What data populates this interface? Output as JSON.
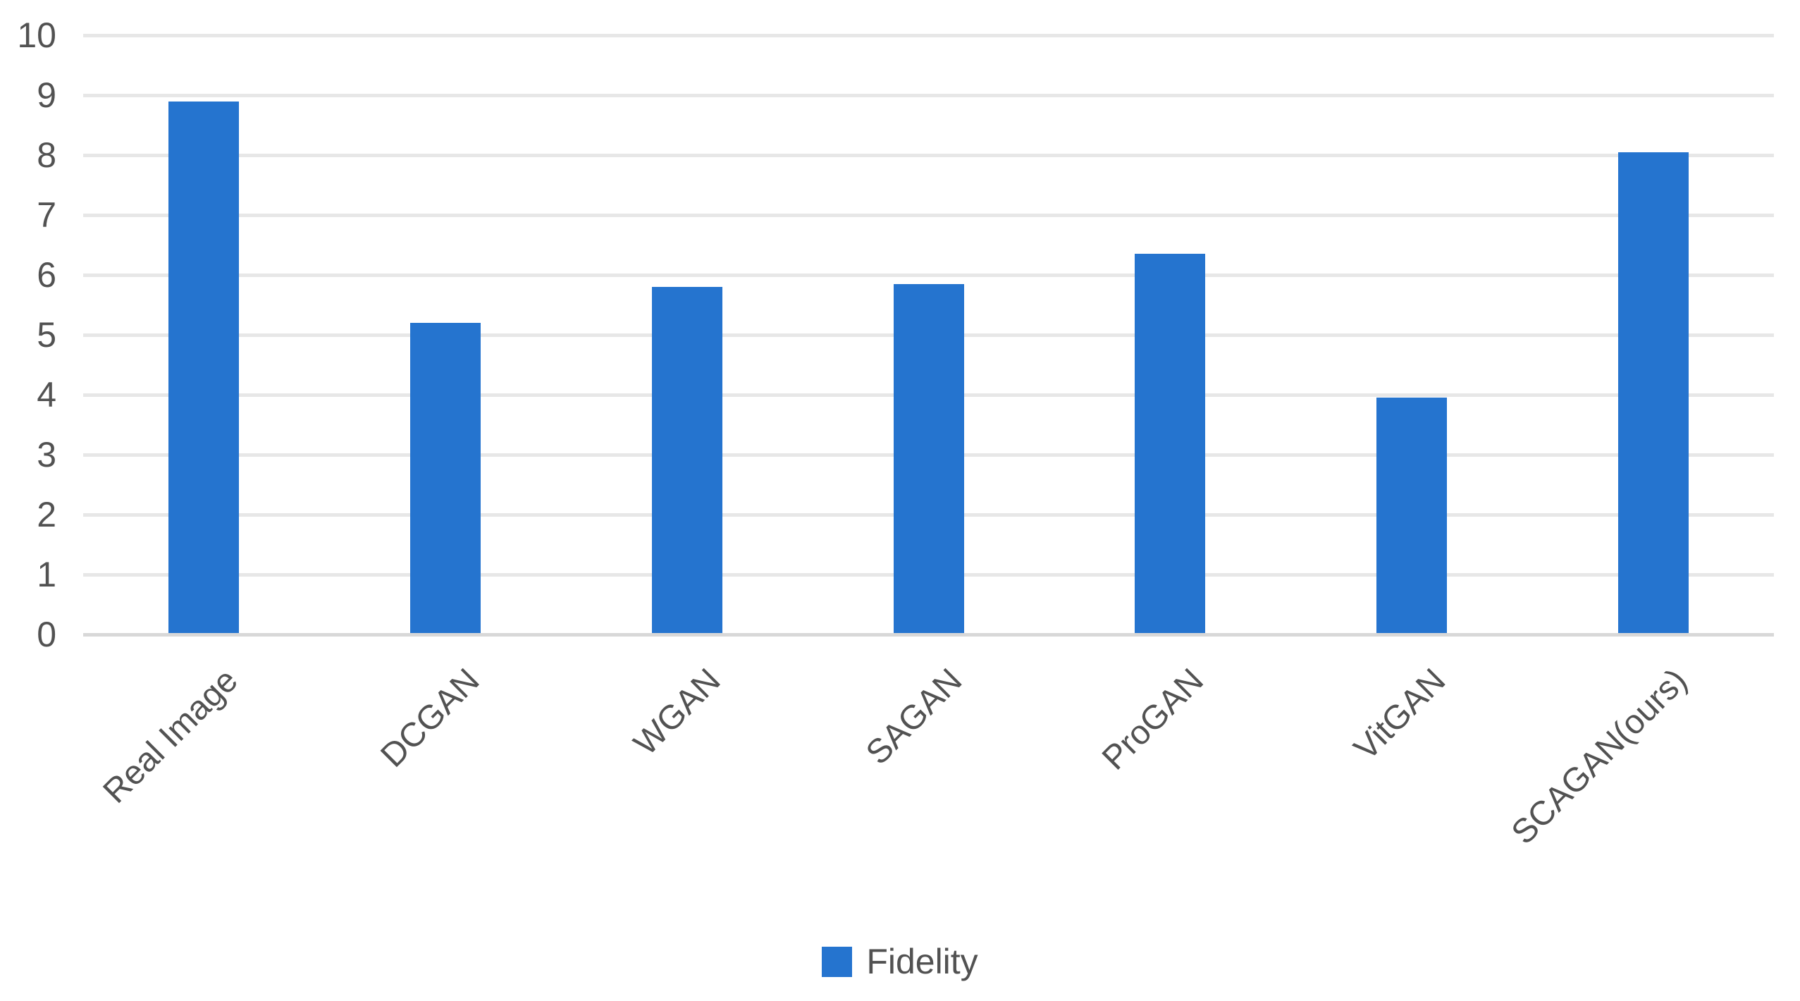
{
  "chart_data": {
    "type": "bar",
    "title": "",
    "xlabel": "",
    "ylabel": "",
    "categories": [
      "Real Image",
      "DCGAN",
      "WGAN",
      "SAGAN",
      "ProGAN",
      "VitGAN",
      "SCAGAN(ours)"
    ],
    "series": [
      {
        "name": "Fidelity",
        "values": [
          8.9,
          5.2,
          5.8,
          5.85,
          6.35,
          3.95,
          8.05
        ]
      }
    ],
    "ylim": [
      0,
      10
    ],
    "yticks": [
      0,
      1,
      2,
      3,
      4,
      5,
      6,
      7,
      8,
      9,
      10
    ],
    "grid": true,
    "legend_position": "bottom",
    "colors": {
      "bar": "#2574cf",
      "gridline": "#e7e7e7",
      "zero_line": "#d8d8d8",
      "label_text": "#525252"
    }
  },
  "legend": {
    "label": "Fidelity"
  }
}
